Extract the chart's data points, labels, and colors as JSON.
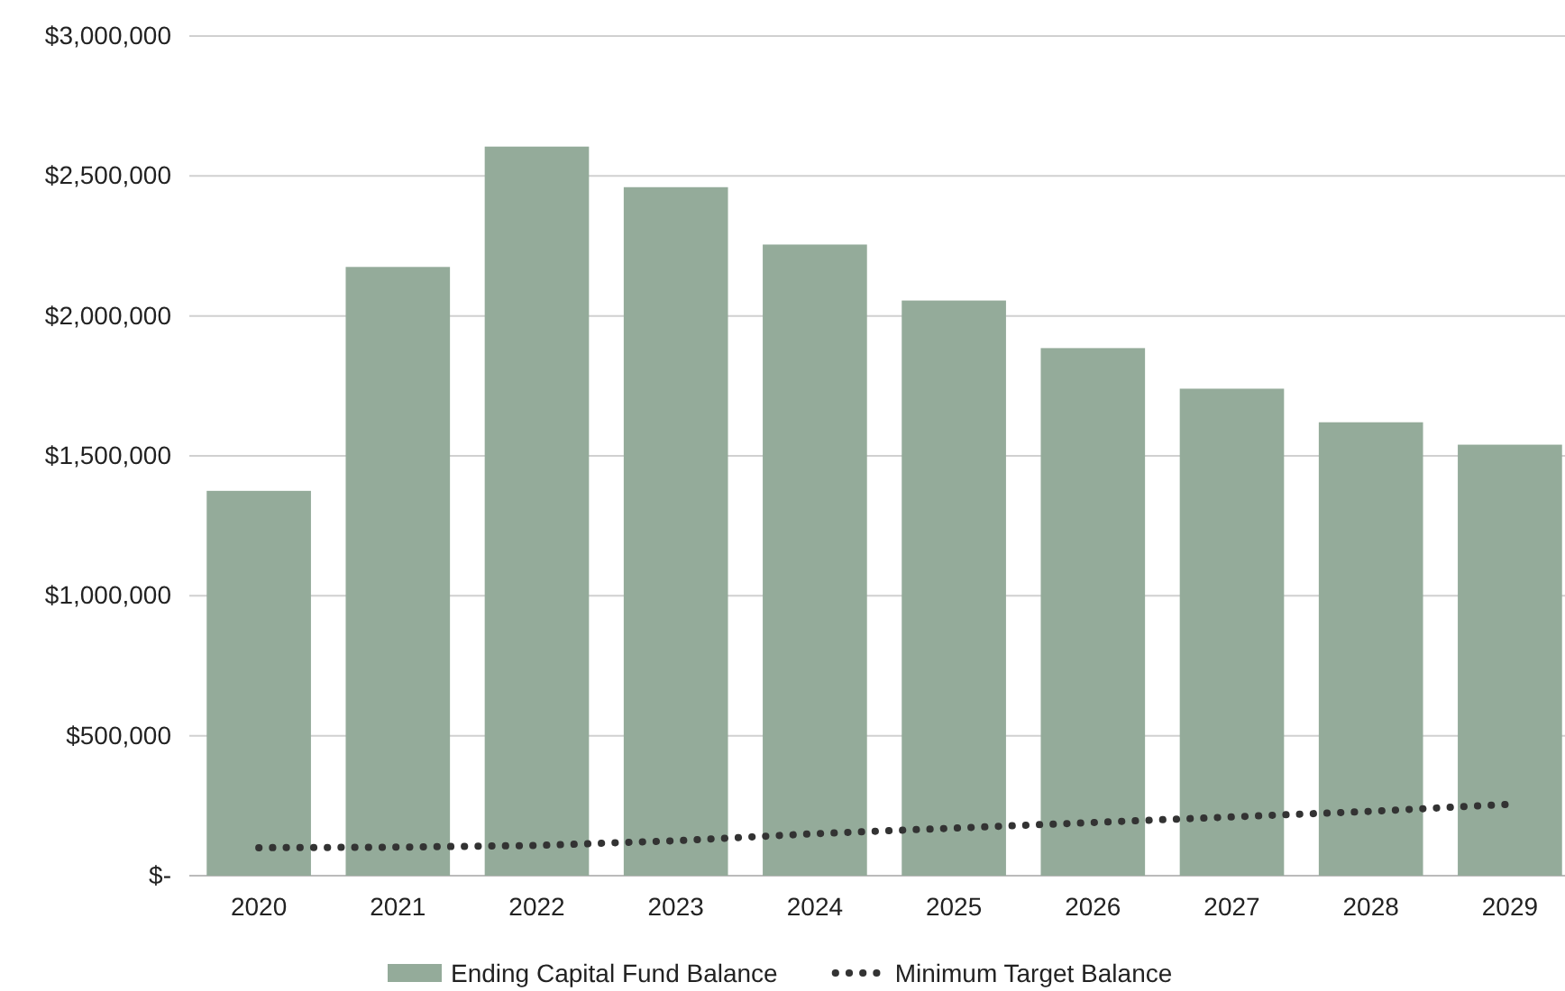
{
  "chart_data": {
    "type": "bar",
    "categories": [
      "2020",
      "2021",
      "2022",
      "2023",
      "2024",
      "2025",
      "2026",
      "2027",
      "2028",
      "2029"
    ],
    "series": [
      {
        "name": "Ending Capital Fund Balance",
        "color": "#94ab9a",
        "values": [
          1375000,
          2175000,
          2605000,
          2460000,
          2255000,
          2055000,
          1885000,
          1740000,
          1620000,
          1540000
        ]
      },
      {
        "name": "Minimum Target Balance",
        "type": "line",
        "color": "#333333",
        "line_style": "dotted",
        "values": [
          100000,
          102000,
          108000,
          125000,
          150000,
          170000,
          190000,
          210000,
          230000,
          255000
        ]
      }
    ],
    "ylim": [
      0,
      3000000
    ],
    "yticks": [
      {
        "value": 0,
        "label": "$-"
      },
      {
        "value": 500000,
        "label": "$500,000"
      },
      {
        "value": 1000000,
        "label": "$1,000,000"
      },
      {
        "value": 1500000,
        "label": "$1,500,000"
      },
      {
        "value": 2000000,
        "label": "$2,000,000"
      },
      {
        "value": 2500000,
        "label": "$2,500,000"
      },
      {
        "value": 3000000,
        "label": "$3,000,000"
      }
    ],
    "grid": "y",
    "legend": "bottom"
  }
}
